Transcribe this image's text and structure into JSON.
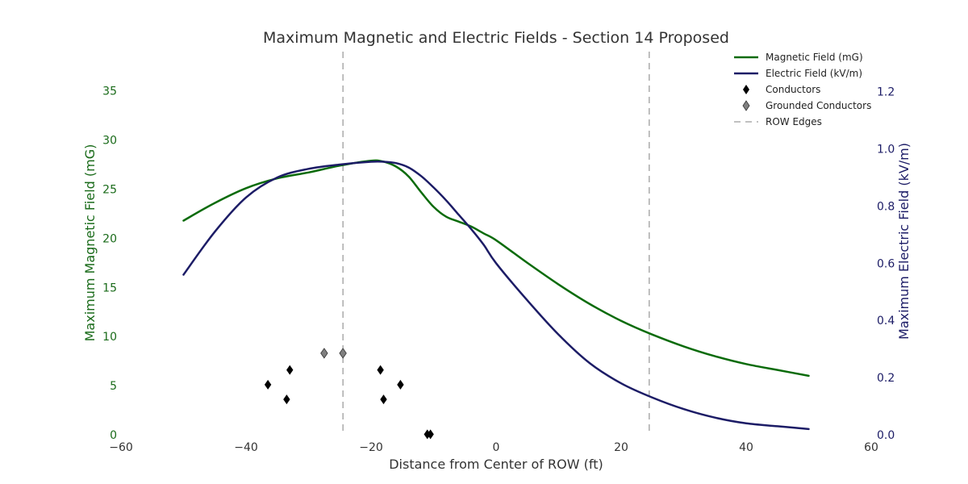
{
  "chart_data": {
    "type": "line",
    "title": "Maximum Magnetic and Electric Fields - Section 14 Proposed",
    "xlabel": "Distance from Center of ROW (ft)",
    "ylabel_left": "Maximum Magnetic Field (mG)",
    "ylabel_right": "Maximum Electric Field (kV/m)",
    "xlim": [
      -60,
      60
    ],
    "ylim_left": [
      0,
      39
    ],
    "ylim_right": [
      0,
      1.34
    ],
    "xticks": [
      -60,
      -40,
      -20,
      0,
      20,
      40,
      60
    ],
    "yticks_left": [
      0,
      5,
      10,
      15,
      20,
      25,
      30,
      35
    ],
    "yticks_right": [
      0.0,
      0.2,
      0.4,
      0.6,
      0.8,
      1.0,
      1.2
    ],
    "grid": false,
    "legend_position": "top-right",
    "colors": {
      "magnetic": "#0a6b0a",
      "electric": "#1c1c66",
      "conductor": "#000000",
      "grounded": "#808080",
      "row": "#808080"
    },
    "series": [
      {
        "name": "Magnetic Field (mG)",
        "axis": "left",
        "x": [
          -50,
          -45,
          -40,
          -35,
          -30,
          -25,
          -20,
          -18,
          -16,
          -14,
          -12,
          -10,
          -8,
          -6,
          -4,
          -2,
          0,
          5,
          10,
          15,
          20,
          25,
          30,
          35,
          40,
          45,
          50
        ],
        "y": [
          21.8,
          23.6,
          25.1,
          26.1,
          26.7,
          27.4,
          27.9,
          27.8,
          27.3,
          26.3,
          24.7,
          23.2,
          22.2,
          21.7,
          21.2,
          20.5,
          19.8,
          17.5,
          15.3,
          13.3,
          11.6,
          10.2,
          9.0,
          8.0,
          7.2,
          6.6,
          6.0
        ]
      },
      {
        "name": "Electric Field (kV/m)",
        "axis": "right",
        "x": [
          -50,
          -45,
          -40,
          -35,
          -30,
          -25,
          -20,
          -18,
          -16,
          -14,
          -12,
          -10,
          -8,
          -6,
          -4,
          -2,
          0,
          5,
          10,
          15,
          20,
          25,
          30,
          35,
          40,
          45,
          50
        ],
        "y": [
          0.56,
          0.71,
          0.83,
          0.9,
          0.93,
          0.945,
          0.955,
          0.955,
          0.95,
          0.935,
          0.905,
          0.865,
          0.82,
          0.77,
          0.72,
          0.665,
          0.6,
          0.47,
          0.35,
          0.25,
          0.18,
          0.13,
          0.09,
          0.06,
          0.04,
          0.03,
          0.02
        ]
      }
    ],
    "conductors": {
      "name": "Conductors",
      "axis": "left",
      "points": [
        [
          -36.5,
          5.1
        ],
        [
          -33.5,
          3.6
        ],
        [
          -33,
          6.6
        ],
        [
          -18.5,
          6.6
        ],
        [
          -18,
          3.6
        ],
        [
          -15.3,
          5.1
        ],
        [
          -11,
          0.05
        ],
        [
          -10.5,
          0.05
        ]
      ]
    },
    "grounded_conductors": {
      "name": "Grounded Conductors",
      "axis": "left",
      "points": [
        [
          -27.5,
          8.3
        ],
        [
          -24.5,
          8.3
        ]
      ]
    },
    "row_edges": {
      "name": "ROW Edges",
      "x": [
        -24.5,
        24.5
      ]
    }
  }
}
